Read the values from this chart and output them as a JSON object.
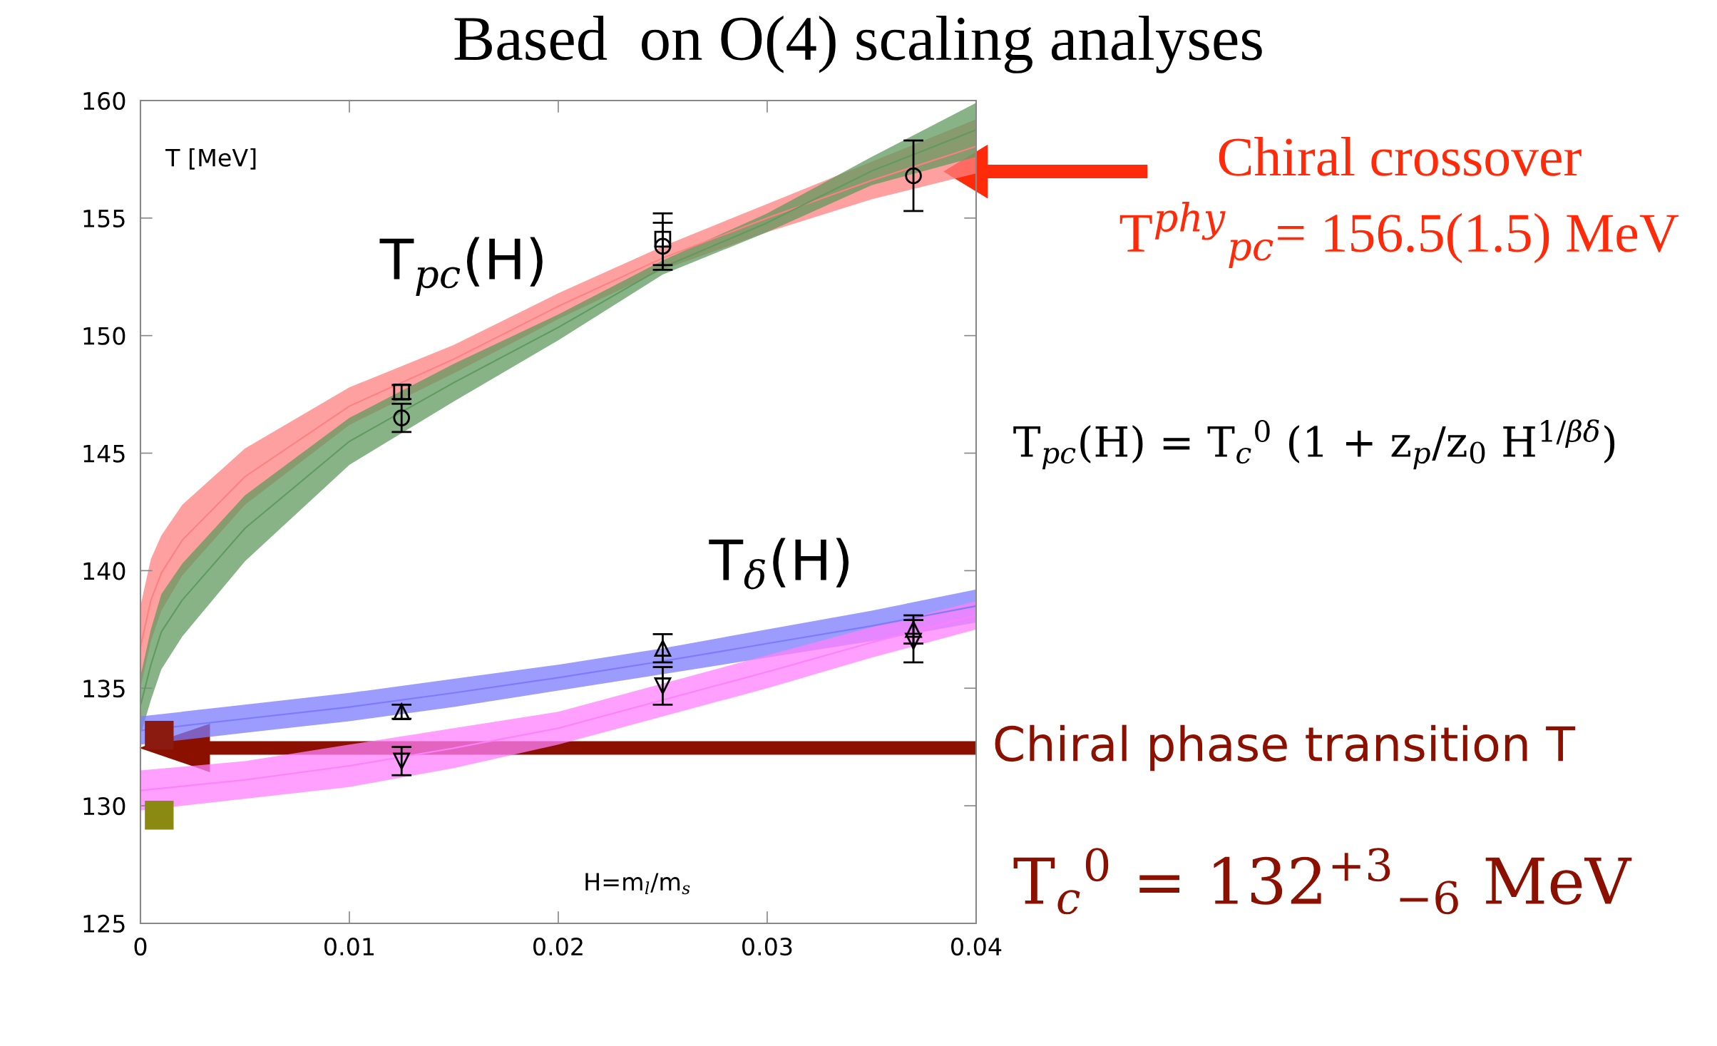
{
  "chart_data": {
    "type": "line",
    "title": "Based  on O(4) scaling analyses",
    "xlabel": "H=m$_{l}$/m$_{s}$",
    "ylabel": "T [MeV]",
    "xlim": [
      0,
      0.04
    ],
    "xticks": [
      0,
      0.01,
      0.02,
      0.03,
      0.04
    ],
    "ylim": [
      125,
      160
    ],
    "yticks": [
      125,
      130,
      135,
      140,
      145,
      150,
      155,
      160
    ],
    "grid": false,
    "legend": false,
    "series": [
      {
        "color": "#ff8080",
        "x": [
          0,
          0.0005,
          0.001,
          0.002,
          0.005,
          0.01,
          0.015,
          0.02,
          0.025,
          0.03,
          0.035,
          0.04
        ],
        "upper": [
          138.5,
          140.5,
          141.5,
          142.8,
          145.2,
          147.8,
          149.6,
          151.8,
          153.8,
          155.6,
          157.4,
          159.2
        ],
        "lower": [
          135.0,
          137.0,
          138.3,
          139.8,
          142.8,
          146.2,
          148.4,
          150.7,
          152.8,
          154.4,
          155.8,
          156.9
        ],
        "values": [
          136.75,
          138.75,
          139.9,
          141.3,
          144.0,
          147.0,
          149.0,
          151.25,
          153.3,
          155.0,
          156.6,
          158.05
        ]
      },
      {
        "color": "#5f9a5f",
        "x": [
          0,
          0.0005,
          0.001,
          0.002,
          0.005,
          0.01,
          0.015,
          0.02,
          0.025,
          0.03,
          0.035,
          0.04
        ],
        "upper": [
          135.5,
          137.5,
          139.0,
          140.3,
          143.2,
          146.5,
          148.8,
          150.9,
          153.2,
          155.2,
          157.6,
          159.9
        ],
        "lower": [
          133.0,
          134.5,
          135.8,
          137.2,
          140.4,
          144.5,
          147.2,
          149.8,
          152.6,
          154.4,
          156.4,
          157.6
        ],
        "values": [
          134.25,
          136.0,
          137.4,
          138.75,
          141.8,
          145.5,
          148.0,
          150.35,
          152.9,
          154.8,
          157.0,
          158.75
        ]
      },
      {
        "color": "#7b7bff",
        "x": [
          0,
          0.005,
          0.01,
          0.015,
          0.02,
          0.025,
          0.03,
          0.035,
          0.04
        ],
        "upper": [
          133.8,
          134.3,
          134.8,
          135.4,
          136.0,
          136.7,
          137.5,
          138.3,
          139.2
        ],
        "lower": [
          132.6,
          133.1,
          133.6,
          134.2,
          134.9,
          135.6,
          136.3,
          137.0,
          137.8
        ],
        "values": [
          133.2,
          133.7,
          134.2,
          134.8,
          135.45,
          136.15,
          136.9,
          137.65,
          138.5
        ]
      },
      {
        "color": "#ff80ff",
        "x": [
          0,
          0.005,
          0.01,
          0.015,
          0.02,
          0.025,
          0.03,
          0.035,
          0.04
        ],
        "upper": [
          131.5,
          131.9,
          132.6,
          133.3,
          134.0,
          135.2,
          136.4,
          137.6,
          138.7
        ],
        "lower": [
          129.8,
          130.3,
          130.8,
          131.6,
          132.6,
          133.8,
          135.0,
          136.3,
          137.5
        ],
        "values": [
          130.65,
          131.1,
          131.7,
          132.45,
          133.3,
          134.5,
          135.7,
          136.95,
          138.1
        ]
      },
      {
        "type": "scatter",
        "color": "#000000",
        "marker": "square",
        "x": [
          0.0125,
          0.025
        ],
        "values": [
          147.6,
          154.1
        ],
        "errors": [
          0.3,
          1.1
        ]
      },
      {
        "type": "scatter",
        "color": "#000000",
        "marker": "circle",
        "x": [
          0.0125,
          0.025,
          0.037
        ],
        "values": [
          146.5,
          153.8,
          156.8
        ],
        "errors": [
          0.6,
          1.0,
          1.5
        ]
      },
      {
        "type": "scatter",
        "color": "#000000",
        "marker": "triangle",
        "x": [
          0.0125,
          0.025,
          0.037
        ],
        "values": [
          134.0,
          136.7,
          137.5
        ],
        "errors": [
          0.3,
          0.6,
          0.6
        ]
      },
      {
        "type": "scatter",
        "color": "#000000",
        "marker": "triangle_down",
        "x": [
          0.0125,
          0.025,
          0.037
        ],
        "values": [
          131.9,
          135.1,
          137.0
        ],
        "errors": [
          0.6,
          0.8,
          0.9
        ]
      },
      {
        "type": "scatter",
        "color": "#8b1a10",
        "marker": "square",
        "x": [
          0.0009
        ],
        "values": [
          133.0
        ]
      },
      {
        "type": "scatter",
        "color": "#8a8a12",
        "marker": "square",
        "x": [
          0.0009
        ],
        "values": [
          129.6
        ]
      }
    ],
    "annotations": [
      "T$_{pc}$(H)",
      "T$_{δ}$(H)",
      "Chiral crossover",
      "T$^{phy}$$_{pc}$= 156.5(1.5) MeV",
      "Chiral phase transition T",
      "T$_{pc}$(H) = T$_{c}$$^{0}$ (1 + z$_{p}$/z$_{0}$ H$^{1/βδ}$)",
      "T$_{c}$$^{0}$ = 132$^{+3}$$_{−6}$ MeV"
    ]
  }
}
